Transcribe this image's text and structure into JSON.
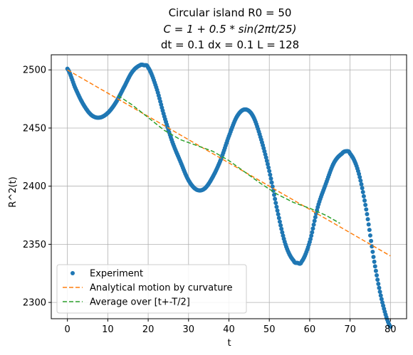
{
  "chart_data": {
    "type": "line",
    "title_lines": [
      "Circular island R0 = 50",
      "C = 1 + 0.5 * sin(2πt/25)",
      "dt = 0.1 dx = 0.1 L = 128"
    ],
    "xlabel": "t",
    "ylabel": "R^2(t)",
    "xlim": [
      -4.0,
      84.0
    ],
    "ylim": [
      2286,
      2513
    ],
    "xticks": [
      0,
      10,
      20,
      30,
      40,
      50,
      60,
      70,
      80
    ],
    "yticks": [
      2300,
      2350,
      2400,
      2450,
      2500
    ],
    "grid": true,
    "legend_position": "lower-left",
    "series": [
      {
        "name": "Experiment",
        "style": "dots",
        "color": "#1f77b4",
        "x": [
          0,
          2,
          4,
          6,
          8,
          10,
          12,
          14,
          16,
          18,
          19,
          20,
          22,
          24,
          26,
          28,
          30,
          32,
          34,
          36,
          38,
          40,
          42,
          44,
          46,
          48,
          50,
          52,
          54,
          56,
          57,
          58,
          60,
          62,
          64,
          66,
          68,
          69,
          70,
          72,
          74,
          76,
          78,
          80
        ],
        "y": [
          2501,
          2484,
          2470,
          2461,
          2459,
          2463,
          2472,
          2485,
          2498,
          2504,
          2504,
          2502,
          2485,
          2460,
          2438,
          2421,
          2405,
          2397,
          2398,
          2408,
          2423,
          2443,
          2460,
          2466,
          2460,
          2440,
          2413,
          2379,
          2350,
          2336,
          2334,
          2335,
          2352,
          2382,
          2402,
          2420,
          2428,
          2430,
          2428,
          2413,
          2380,
          2335,
          2300,
          2279
        ]
      },
      {
        "name": "Analytical motion by curvature",
        "style": "dashed",
        "color": "#ff7f0e",
        "x": [
          0,
          80
        ],
        "y": [
          2500,
          2340
        ]
      },
      {
        "name": "Average over [t+-T/2]",
        "style": "dashed",
        "color": "#2ca02c",
        "x": [
          12.5,
          16,
          20,
          24,
          28,
          32,
          36,
          40,
          44,
          48,
          52,
          56,
          60,
          64,
          67.5
        ],
        "y": [
          2478,
          2470,
          2459,
          2448,
          2440,
          2435,
          2430,
          2422,
          2412,
          2402,
          2393,
          2386,
          2381,
          2375,
          2368
        ]
      }
    ]
  }
}
